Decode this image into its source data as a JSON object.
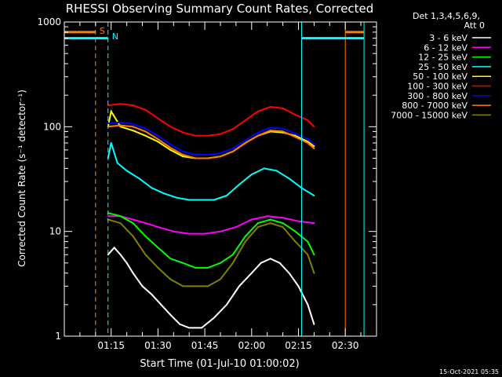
{
  "chart_data": {
    "type": "line",
    "title": "RHESSI Observing Summary Count Rates, Corrected",
    "xlabel": "Start Time (01-Jul-10 01:00:02)",
    "ylabel": "Corrected Count Rate (s⁻¹ detector⁻¹)",
    "yscale": "log",
    "ylim": [
      1,
      1000
    ],
    "xlim_minutes": [
      0,
      100
    ],
    "x_ticks": [
      {
        "minute": 15,
        "label": "01:15"
      },
      {
        "minute": 30,
        "label": "01:30"
      },
      {
        "minute": 45,
        "label": "01:45"
      },
      {
        "minute": 60,
        "label": "02:00"
      },
      {
        "minute": 75,
        "label": "02:15"
      },
      {
        "minute": 90,
        "label": "02:30"
      }
    ],
    "y_ticks": [
      {
        "value": 1,
        "label": "1"
      },
      {
        "value": 10,
        "label": "10"
      },
      {
        "value": 100,
        "label": "100"
      },
      {
        "value": 1000,
        "label": "1000"
      }
    ],
    "legend_header": [
      "Det 1,3,4,5,6,9,",
      "Att 0"
    ],
    "series": [
      {
        "name": "3 - 6 keV",
        "color": "#ffffff",
        "x": [
          14,
          16,
          18,
          20,
          22,
          25,
          28,
          31,
          34,
          37,
          40,
          44,
          48,
          52,
          56,
          60,
          63,
          66,
          69,
          72,
          75,
          78,
          80
        ],
        "values": [
          6,
          7,
          6,
          5,
          4,
          3,
          2.5,
          2,
          1.6,
          1.3,
          1.2,
          1.2,
          1.5,
          2,
          3,
          4,
          5,
          5.5,
          5,
          4,
          3,
          2,
          1.3
        ]
      },
      {
        "name": "6 - 12 keV",
        "color": "#ff00ff",
        "x": [
          14,
          18,
          22,
          26,
          30,
          35,
          40,
          45,
          50,
          55,
          60,
          65,
          70,
          75,
          80
        ],
        "values": [
          14,
          14,
          13,
          12,
          11,
          10,
          9.5,
          9.5,
          10,
          11,
          13,
          14,
          13.5,
          12.5,
          12
        ]
      },
      {
        "name": "12 - 25 keV",
        "color": "#00ff00",
        "x": [
          14,
          18,
          22,
          26,
          30,
          34,
          38,
          42,
          46,
          50,
          54,
          58,
          62,
          66,
          70,
          74,
          78,
          80
        ],
        "values": [
          15,
          14,
          12,
          9,
          7,
          5.5,
          5,
          4.5,
          4.5,
          5,
          6,
          9,
          12,
          13,
          12,
          10,
          8,
          6
        ]
      },
      {
        "name": "25 - 50 keV",
        "color": "#00ffff",
        "x": [
          14,
          15,
          17,
          20,
          24,
          28,
          32,
          36,
          40,
          44,
          48,
          52,
          56,
          60,
          64,
          68,
          72,
          76,
          80
        ],
        "values": [
          50,
          70,
          45,
          38,
          32,
          26,
          23,
          21,
          20,
          20,
          20,
          22,
          28,
          35,
          40,
          38,
          32,
          26,
          22
        ]
      },
      {
        "name": "50 - 100 keV",
        "color": "#ffff00",
        "x": [
          14,
          15,
          18,
          22,
          26,
          30,
          34,
          38,
          42,
          46,
          50,
          54,
          58,
          62,
          66,
          70,
          74,
          78,
          80
        ],
        "values": [
          100,
          140,
          100,
          92,
          82,
          72,
          60,
          52,
          50,
          50,
          52,
          58,
          70,
          82,
          90,
          88,
          82,
          72,
          65
        ]
      },
      {
        "name": "100 - 300 keV",
        "color": "#ff0000",
        "x": [
          14,
          18,
          22,
          26,
          30,
          34,
          38,
          42,
          46,
          50,
          54,
          58,
          62,
          66,
          70,
          74,
          78,
          80
        ],
        "values": [
          160,
          165,
          160,
          145,
          120,
          100,
          88,
          82,
          82,
          85,
          95,
          115,
          140,
          155,
          150,
          130,
          115,
          100
        ]
      },
      {
        "name": "300 - 800 keV",
        "color": "#0000ff",
        "x": [
          14,
          18,
          22,
          26,
          30,
          34,
          38,
          42,
          46,
          50,
          54,
          58,
          62,
          66,
          70,
          74,
          78,
          80
        ],
        "values": [
          108,
          110,
          106,
          96,
          82,
          68,
          58,
          54,
          54,
          56,
          62,
          74,
          88,
          98,
          96,
          86,
          76,
          68
        ]
      },
      {
        "name": "800 - 7000 keV",
        "color": "#ff8000",
        "x": [
          14,
          18,
          22,
          26,
          30,
          34,
          38,
          42,
          46,
          50,
          54,
          58,
          62,
          66,
          70,
          74,
          78,
          80
        ],
        "values": [
          100,
          103,
          100,
          90,
          76,
          63,
          54,
          50,
          50,
          52,
          58,
          70,
          82,
          92,
          90,
          80,
          70,
          62
        ]
      },
      {
        "name": "7000 - 15000 keV",
        "color": "#808000",
        "x": [
          14,
          18,
          22,
          26,
          30,
          34,
          38,
          42,
          46,
          50,
          54,
          58,
          62,
          66,
          70,
          74,
          78,
          80
        ],
        "values": [
          13,
          12,
          9,
          6,
          4.5,
          3.5,
          3,
          3,
          3,
          3.5,
          5,
          8,
          11,
          12,
          11,
          8,
          6,
          4
        ]
      }
    ],
    "annotations": {
      "orange_markers": [
        {
          "minute": 10,
          "label": "S"
        },
        {
          "minute": 90,
          "label": ""
        }
      ],
      "cyan_markers": [
        {
          "minute": 14,
          "label": "N"
        },
        {
          "minute": 76,
          "label": ""
        },
        {
          "minute": 96,
          "label": ""
        }
      ],
      "bars": [
        {
          "color": "#ff8000",
          "y": 800,
          "from_minute": 0,
          "to_minute": 10
        },
        {
          "color": "#00ffff",
          "y": 700,
          "from_minute": 0,
          "to_minute": 14
        },
        {
          "color": "#ff8000",
          "y": 800,
          "from_minute": 90,
          "to_minute": 96
        },
        {
          "color": "#00ffff",
          "y": 700,
          "from_minute": 76,
          "to_minute": 96
        }
      ]
    },
    "footer_timestamp": "15-Oct-2021 05:35"
  }
}
